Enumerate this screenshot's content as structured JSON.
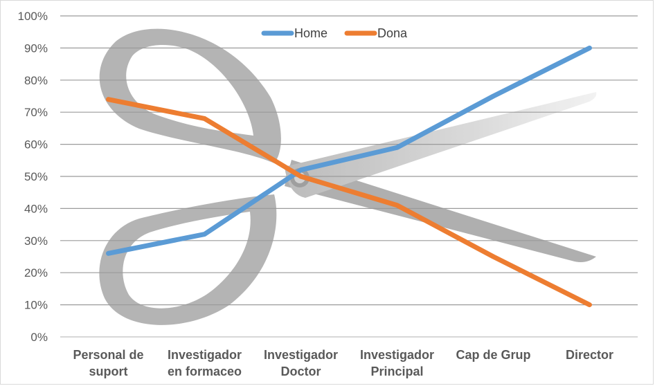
{
  "chart_data": {
    "type": "line",
    "title": "",
    "xlabel": "",
    "ylabel": "",
    "categories": [
      [
        "Personal de",
        "suport"
      ],
      [
        "Investigador",
        "en formaceo"
      ],
      [
        "Investigador",
        "Doctor"
      ],
      [
        "Investigador",
        "Principal"
      ],
      [
        "Cap de Grup"
      ],
      [
        "Director"
      ]
    ],
    "series": [
      {
        "name": "Home",
        "color": "#5b9bd5",
        "values": [
          0.26,
          0.32,
          0.52,
          0.59,
          0.75,
          0.9
        ]
      },
      {
        "name": "Dona",
        "color": "#ed7d31",
        "values": [
          0.74,
          0.68,
          0.5,
          0.41,
          0.25,
          0.1
        ]
      }
    ],
    "ylim": [
      0,
      1
    ],
    "y_ticks": [
      "0%",
      "10%",
      "20%",
      "30%",
      "40%",
      "50%",
      "60%",
      "70%",
      "80%",
      "90%",
      "100%"
    ],
    "grid": true,
    "legend_position": "top-center",
    "background_image": "scissors-icon"
  }
}
